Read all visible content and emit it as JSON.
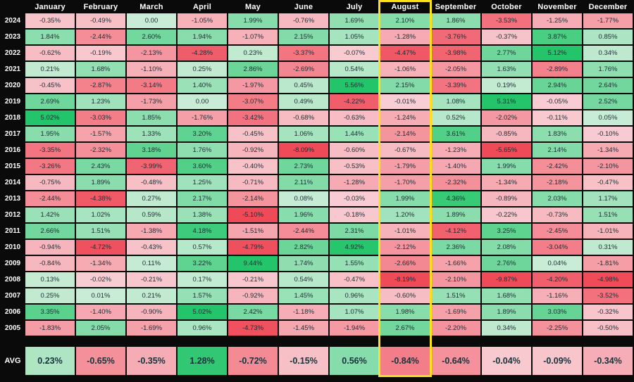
{
  "colors": {
    "background": "#0a0a0a",
    "highlight": "#ffe01a",
    "positive_strong": "#24c56a",
    "positive_light": "#c9ecd6",
    "negative_strong": "#ef4a58",
    "negative_light": "#f8cdd3",
    "header_text": "#ffffff",
    "cell_text": "#1d2c33"
  },
  "chart_data": {
    "type": "heatmap",
    "title": "",
    "highlighted_column": "August",
    "x": [
      "January",
      "February",
      "March",
      "April",
      "May",
      "June",
      "July",
      "August",
      "September",
      "October",
      "November",
      "December"
    ],
    "rows": [
      {
        "label": "2024",
        "values": [
          "-0.35%",
          "-0.49%",
          "0.00",
          "-1.05%",
          "1.99%",
          "-0.76%",
          "1.69%",
          "2.10%",
          "1.86%",
          "-3.53%",
          "-1.25%",
          "-1.77%"
        ]
      },
      {
        "label": "2023",
        "values": [
          "1.84%",
          "-2.44%",
          "2.60%",
          "1.94%",
          "-1.07%",
          "2.15%",
          "1.05%",
          "-1.28%",
          "-3.76%",
          "-0.37%",
          "3.87%",
          "0.85%"
        ]
      },
      {
        "label": "2022",
        "values": [
          "-0.62%",
          "-0.19%",
          "-2.13%",
          "-4.28%",
          "0.23%",
          "-3.37%",
          "-0.07%",
          "-4.47%",
          "-3.98%",
          "2.77%",
          "5.12%",
          "0.34%"
        ]
      },
      {
        "label": "2021",
        "values": [
          "0.21%",
          "1.68%",
          "-1.10%",
          "0.25%",
          "2.86%",
          "-2.69%",
          "0.54%",
          "-1.06%",
          "-2.05%",
          "1.63%",
          "-2.89%",
          "1.76%"
        ]
      },
      {
        "label": "2020",
        "values": [
          "-0.45%",
          "-2.87%",
          "-3.14%",
          "1.40%",
          "-1.97%",
          "0.45%",
          "5.56%",
          "2.15%",
          "-3.39%",
          "0.19%",
          "2.94%",
          "2.64%"
        ]
      },
      {
        "label": "2019",
        "values": [
          "2.69%",
          "1.23%",
          "-1.73%",
          "0.00",
          "-3.07%",
          "0.49%",
          "-4.22%",
          "-0.01%",
          "1.08%",
          "5.31%",
          "-0.05%",
          "2.52%"
        ]
      },
      {
        "label": "2018",
        "values": [
          "5.02%",
          "-3.03%",
          "1.85%",
          "-1.76%",
          "-3.42%",
          "-0.68%",
          "-0.63%",
          "-1.24%",
          "0.52%",
          "-2.02%",
          "-0.11%",
          "0.05%"
        ]
      },
      {
        "label": "2017",
        "values": [
          "1.95%",
          "-1.57%",
          "1.33%",
          "3.20%",
          "-0.45%",
          "1.06%",
          "1.44%",
          "-2.14%",
          "3.61%",
          "-0.85%",
          "1.83%",
          "-0.10%"
        ]
      },
      {
        "label": "2016",
        "values": [
          "-3.35%",
          "-2.32%",
          "3.18%",
          "1.76%",
          "-0.92%",
          "-8.09%",
          "-0.60%",
          "-0.67%",
          "-1.23%",
          "-5.65%",
          "2.14%",
          "-1.34%"
        ]
      },
      {
        "label": "2015",
        "values": [
          "-3.26%",
          "2.43%",
          "-3.99%",
          "3.60%",
          "-0.40%",
          "2.73%",
          "-0.53%",
          "-1.79%",
          "-1.40%",
          "1.99%",
          "-2.42%",
          "-2.10%"
        ]
      },
      {
        "label": "2014",
        "values": [
          "-0.75%",
          "1.89%",
          "-0.48%",
          "1.25%",
          "-0.71%",
          "2.11%",
          "-1.28%",
          "-1.70%",
          "-2.32%",
          "-1.34%",
          "-2.18%",
          "-0.47%"
        ]
      },
      {
        "label": "2013",
        "values": [
          "-2.44%",
          "-4.38%",
          "0.27%",
          "2.17%",
          "-2.14%",
          "0.08%",
          "-0.03%",
          "1.99%",
          "4.36%",
          "-0.89%",
          "2.03%",
          "1.17%"
        ]
      },
      {
        "label": "2012",
        "values": [
          "1.42%",
          "1.02%",
          "0.59%",
          "1.38%",
          "-5.10%",
          "1.96%",
          "-0.18%",
          "1.20%",
          "1.89%",
          "-0.22%",
          "-0.73%",
          "1.51%"
        ]
      },
      {
        "label": "2011",
        "values": [
          "2.66%",
          "1.51%",
          "-1.38%",
          "4.18%",
          "-1.51%",
          "-2.44%",
          "2.31%",
          "-1.01%",
          "-4.12%",
          "3.25%",
          "-2.45%",
          "-1.01%"
        ]
      },
      {
        "label": "2010",
        "values": [
          "-0.94%",
          "-4.72%",
          "-0.43%",
          "0.57%",
          "-4.79%",
          "2.82%",
          "4.92%",
          "-2.12%",
          "2.36%",
          "2.08%",
          "-3.04%",
          "0.31%"
        ]
      },
      {
        "label": "2009",
        "values": [
          "-0.84%",
          "-1.34%",
          "0.11%",
          "3.22%",
          "9.44%",
          "1.74%",
          "1.55%",
          "-2.66%",
          "-1.66%",
          "2.76%",
          "0.04%",
          "-1.81%"
        ]
      },
      {
        "label": "2008",
        "values": [
          "0.13%",
          "-0.02%",
          "-0.21%",
          "0.17%",
          "-0.21%",
          "0.54%",
          "-0.47%",
          "-8.19%",
          "-2.10%",
          "-9.87%",
          "-4.20%",
          "-4.98%"
        ]
      },
      {
        "label": "2007",
        "values": [
          "0.25%",
          "0.01%",
          "0.21%",
          "1.57%",
          "-0.92%",
          "1.45%",
          "0.96%",
          "-0.60%",
          "1.51%",
          "1.68%",
          "-1.16%",
          "-3.52%"
        ]
      },
      {
        "label": "2006",
        "values": [
          "3.35%",
          "-1.40%",
          "-0.90%",
          "5.02%",
          "2.42%",
          "-1.18%",
          "1.07%",
          "1.98%",
          "-1.69%",
          "1.89%",
          "3.03%",
          "-0.32%"
        ]
      },
      {
        "label": "2005",
        "values": [
          "-1.83%",
          "2.05%",
          "-1.69%",
          "0.96%",
          "-4.73%",
          "-1.45%",
          "-1.94%",
          "2.67%",
          "-2.20%",
          "0.34%",
          "-2.25%",
          "-0.50%"
        ]
      }
    ],
    "avg_row": {
      "label": "AVG",
      "values": [
        "0.23%",
        "-0.65%",
        "-0.35%",
        "1.28%",
        "-0.72%",
        "-0.15%",
        "0.56%",
        "-0.84%",
        "-0.64%",
        "-0.04%",
        "-0.09%",
        "-0.34%"
      ]
    }
  }
}
